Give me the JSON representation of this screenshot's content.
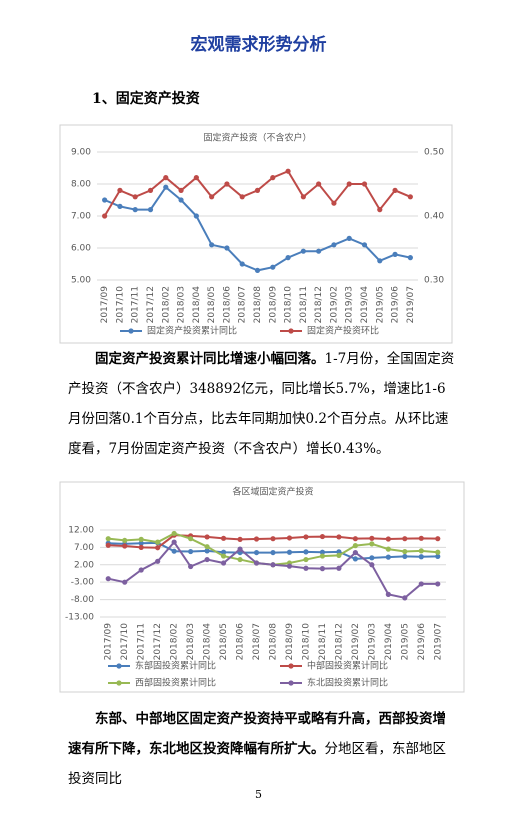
{
  "document": {
    "title": "宏观需求形势分析",
    "heading": "1、固定资产投资",
    "paragraphs": [
      {
        "bold": "固定资产投资累计同比增速小幅回落。",
        "text": "1-7月份，全国固定资产投资（不含农户）348892亿元，同比增长5.7%，增速比1-6月份回落0.1个百分点，比去年同期加快0.2个百分点。从环比速度看，7月份固定资产投资（不含农户）增长0.43%。"
      },
      {
        "bold": "东部、中部地区固定资产投资持平或略有升高，西部投资增速有所下降，东北地区投资降幅有所扩大。",
        "text": "分地区看，东部地区投资同比"
      }
    ],
    "page_number": "5"
  },
  "chart_data": [
    {
      "type": "line",
      "title": "固定资产投资（不含农户）",
      "categories": [
        "2017/09",
        "2017/10",
        "2017/11",
        "2017/12",
        "2018/02",
        "2018/03",
        "2018/04",
        "2018/05",
        "2018/06",
        "2018/07",
        "2018/08",
        "2018/09",
        "2018/10",
        "2018/11",
        "2018/12",
        "2019/02",
        "2019/03",
        "2019/04",
        "2019/05",
        "2019/06",
        "2019/07"
      ],
      "series": [
        {
          "name": "固定资产投资累计同比",
          "color": "#4a7ebb",
          "values": [
            7.5,
            7.3,
            7.2,
            7.2,
            7.9,
            7.5,
            7.0,
            6.1,
            6.0,
            5.5,
            5.3,
            5.4,
            5.7,
            5.9,
            5.9,
            6.1,
            6.3,
            6.1,
            5.6,
            5.8,
            5.7
          ]
        },
        {
          "name": "固定资产投资环比",
          "color": "#be4b48",
          "axis": "y2",
          "values": [
            0.4,
            0.44,
            0.43,
            0.44,
            0.46,
            0.44,
            0.46,
            0.43,
            0.45,
            0.43,
            0.44,
            0.46,
            0.47,
            0.43,
            0.45,
            0.42,
            0.45,
            0.45,
            0.41,
            0.44,
            0.43
          ]
        }
      ],
      "ylim": [
        5,
        9
      ],
      "yticks": [
        {
          "value": 5,
          "label": "5.00"
        },
        {
          "value": 6,
          "label": "6.00"
        },
        {
          "value": 7,
          "label": "7.00"
        },
        {
          "value": 8,
          "label": "8.00"
        },
        {
          "value": 9,
          "label": "9.00"
        }
      ],
      "y2lim": [
        0.3,
        0.5
      ],
      "y2ticks": [
        {
          "value": 0.3,
          "label": "0.30"
        },
        {
          "value": 0.4,
          "label": "0.40"
        },
        {
          "value": 0.5,
          "label": "0.50"
        }
      ],
      "grid": true,
      "legend": "bottom"
    },
    {
      "type": "line",
      "title": "各区域固定资产投资",
      "categories": [
        "2017/09",
        "2017/10",
        "2017/11",
        "2017/12",
        "2018/02",
        "2018/03",
        "2018/04",
        "2018/05",
        "2018/06",
        "2018/07",
        "2018/08",
        "2018/09",
        "2018/10",
        "2018/11",
        "2018/12",
        "2019/02",
        "2019/03",
        "2019/04",
        "2019/05",
        "2019/06",
        "2019/07"
      ],
      "series": [
        {
          "name": "东部固投资累计同比",
          "color": "#4a7ebb",
          "values": [
            8.2,
            8.0,
            8.2,
            8.3,
            5.9,
            5.8,
            6.0,
            5.6,
            5.5,
            5.5,
            5.5,
            5.6,
            5.7,
            5.6,
            5.7,
            3.7,
            4.0,
            4.2,
            4.4,
            4.3,
            4.4
          ]
        },
        {
          "name": "中部固投资累计同比",
          "color": "#be4b48",
          "values": [
            7.6,
            7.4,
            7.0,
            6.9,
            10.5,
            10.3,
            10.0,
            9.6,
            9.3,
            9.4,
            9.5,
            9.7,
            10.0,
            10.1,
            10.0,
            9.5,
            9.6,
            9.4,
            9.5,
            9.6,
            9.5
          ]
        },
        {
          "name": "西部固投资累计同比",
          "color": "#98b954",
          "values": [
            9.5,
            9.0,
            9.3,
            8.5,
            11.0,
            9.5,
            7.2,
            4.5,
            3.5,
            2.5,
            2.0,
            2.5,
            3.5,
            4.5,
            4.7,
            7.5,
            8.0,
            6.5,
            5.8,
            6.0,
            5.6
          ]
        },
        {
          "name": "东北固投资累计同比",
          "color": "#7d60a0",
          "values": [
            -2.0,
            -3.0,
            0.5,
            3.0,
            8.5,
            1.5,
            3.5,
            2.5,
            6.5,
            2.5,
            2.0,
            1.6,
            1.0,
            0.9,
            1.0,
            5.5,
            2.0,
            -6.5,
            -7.5,
            -3.5,
            -3.5
          ]
        }
      ],
      "ylim": [
        -13,
        14
      ],
      "yticks": [
        {
          "value": -13,
          "label": "-13.00"
        },
        {
          "value": -8,
          "label": "-8.00"
        },
        {
          "value": -3,
          "label": "-3.00"
        },
        {
          "value": 2,
          "label": "2.00"
        },
        {
          "value": 7,
          "label": "7.00"
        },
        {
          "value": 12,
          "label": "12.00"
        }
      ],
      "grid": true,
      "legend": "bottom"
    }
  ]
}
